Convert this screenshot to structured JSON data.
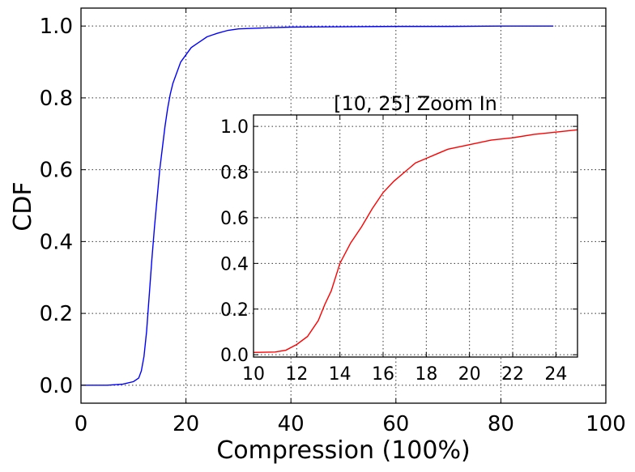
{
  "chart_data": [
    {
      "type": "line",
      "xlabel": "Compression (100%)",
      "ylabel": "CDF",
      "xlim": [
        0,
        100
      ],
      "ylim": [
        -0.05,
        1.05
      ],
      "x_ticks": [
        "0",
        "20",
        "40",
        "60",
        "80",
        "100"
      ],
      "y_ticks": [
        "0.0",
        "0.2",
        "0.4",
        "0.6",
        "0.8",
        "1.0"
      ],
      "grid": true,
      "series": [
        {
          "color": "#0000ff",
          "x": [
            0,
            5,
            8,
            10,
            11,
            11.5,
            12,
            12.5,
            13,
            13.5,
            14,
            14.5,
            15,
            15.5,
            16,
            16.5,
            17,
            17.5,
            18,
            19,
            20,
            21,
            22,
            23,
            24,
            25,
            26,
            28,
            30,
            35,
            40,
            50,
            60,
            70,
            80,
            90
          ],
          "y": [
            0,
            0,
            0.003,
            0.01,
            0.02,
            0.04,
            0.08,
            0.15,
            0.25,
            0.35,
            0.44,
            0.52,
            0.6,
            0.66,
            0.72,
            0.77,
            0.81,
            0.84,
            0.86,
            0.9,
            0.92,
            0.94,
            0.95,
            0.96,
            0.97,
            0.975,
            0.98,
            0.988,
            0.992,
            0.995,
            0.997,
            0.998,
            0.999,
            0.999,
            1.0,
            1.0
          ]
        }
      ]
    },
    {
      "type": "line",
      "title": "[10, 25] Zoom In",
      "xlim": [
        10,
        25
      ],
      "ylim": [
        -0.01,
        1.05
      ],
      "x_ticks": [
        "10",
        "12",
        "14",
        "16",
        "18",
        "20",
        "22",
        "24"
      ],
      "y_ticks": [
        "0.0",
        "0.2",
        "0.4",
        "0.6",
        "0.8",
        "1.0"
      ],
      "grid": true,
      "series": [
        {
          "color": "#ff0000",
          "x": [
            10,
            11,
            11.5,
            12,
            12.5,
            13,
            13.3,
            13.6,
            14,
            14.5,
            15,
            15.5,
            16,
            16.5,
            17,
            17.5,
            18,
            18.5,
            19,
            20,
            21,
            22,
            23,
            24,
            25
          ],
          "y": [
            0.01,
            0.012,
            0.02,
            0.045,
            0.08,
            0.15,
            0.22,
            0.28,
            0.4,
            0.49,
            0.56,
            0.64,
            0.71,
            0.76,
            0.8,
            0.84,
            0.86,
            0.88,
            0.9,
            0.92,
            0.94,
            0.95,
            0.965,
            0.975,
            0.985
          ]
        }
      ]
    }
  ]
}
